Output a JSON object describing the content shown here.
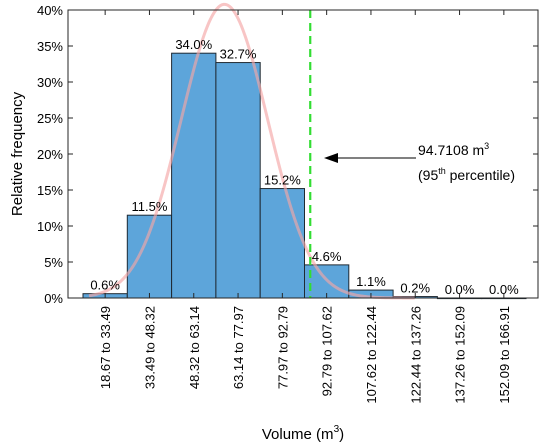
{
  "chart_data": {
    "type": "bar",
    "title": "",
    "xlabel": "Volume (m",
    "xlabel_sup": "3",
    "xlabel_close": ")",
    "ylabel": "Relative frequency",
    "ylim": [
      0,
      40
    ],
    "y_ticks": [
      0,
      5,
      10,
      15,
      20,
      25,
      30,
      35,
      40
    ],
    "y_tick_labels": [
      "0%",
      "5%",
      "10%",
      "15%",
      "20%",
      "25%",
      "30%",
      "35%",
      "40%"
    ],
    "categories": [
      "18.67 to 33.49",
      "33.49 to 48.32",
      "48.32 to 63.14",
      "63.14 to 77.97",
      "77.97 to 92.79",
      "92.79 to 107.62",
      "107.62 to 122.44",
      "122.44 to 137.26",
      "137.26 to 152.09",
      "152.09 to 166.91"
    ],
    "bin_edges": [
      18.67,
      33.49,
      48.32,
      63.14,
      77.97,
      92.79,
      107.62,
      122.44,
      137.26,
      152.09,
      166.91
    ],
    "values": [
      0.6,
      11.5,
      34.0,
      32.7,
      15.2,
      4.6,
      1.1,
      0.2,
      0.0,
      0.0
    ],
    "data_labels": [
      "0.6%",
      "11.5%",
      "34.0%",
      "32.7%",
      "15.2%",
      "4.6%",
      "1.1%",
      "0.2%",
      "0.0%",
      "0.0%"
    ],
    "fit_curve": {
      "mean": 66.0,
      "sd": 14.5,
      "bin_width": 14.824
    },
    "percentile_line": {
      "x": 94.7108
    },
    "annotation": {
      "value_text": "94.7108 m",
      "value_sup": "3",
      "pct_open": "(95",
      "pct_sup": "th",
      "pct_close": " percentile)"
    },
    "colors": {
      "bar_fill": "#5DA5DA",
      "bar_stroke": "#1f2a33",
      "curve": "#F4A6A6",
      "percentile_line": "#33dd33"
    },
    "grid": false
  }
}
